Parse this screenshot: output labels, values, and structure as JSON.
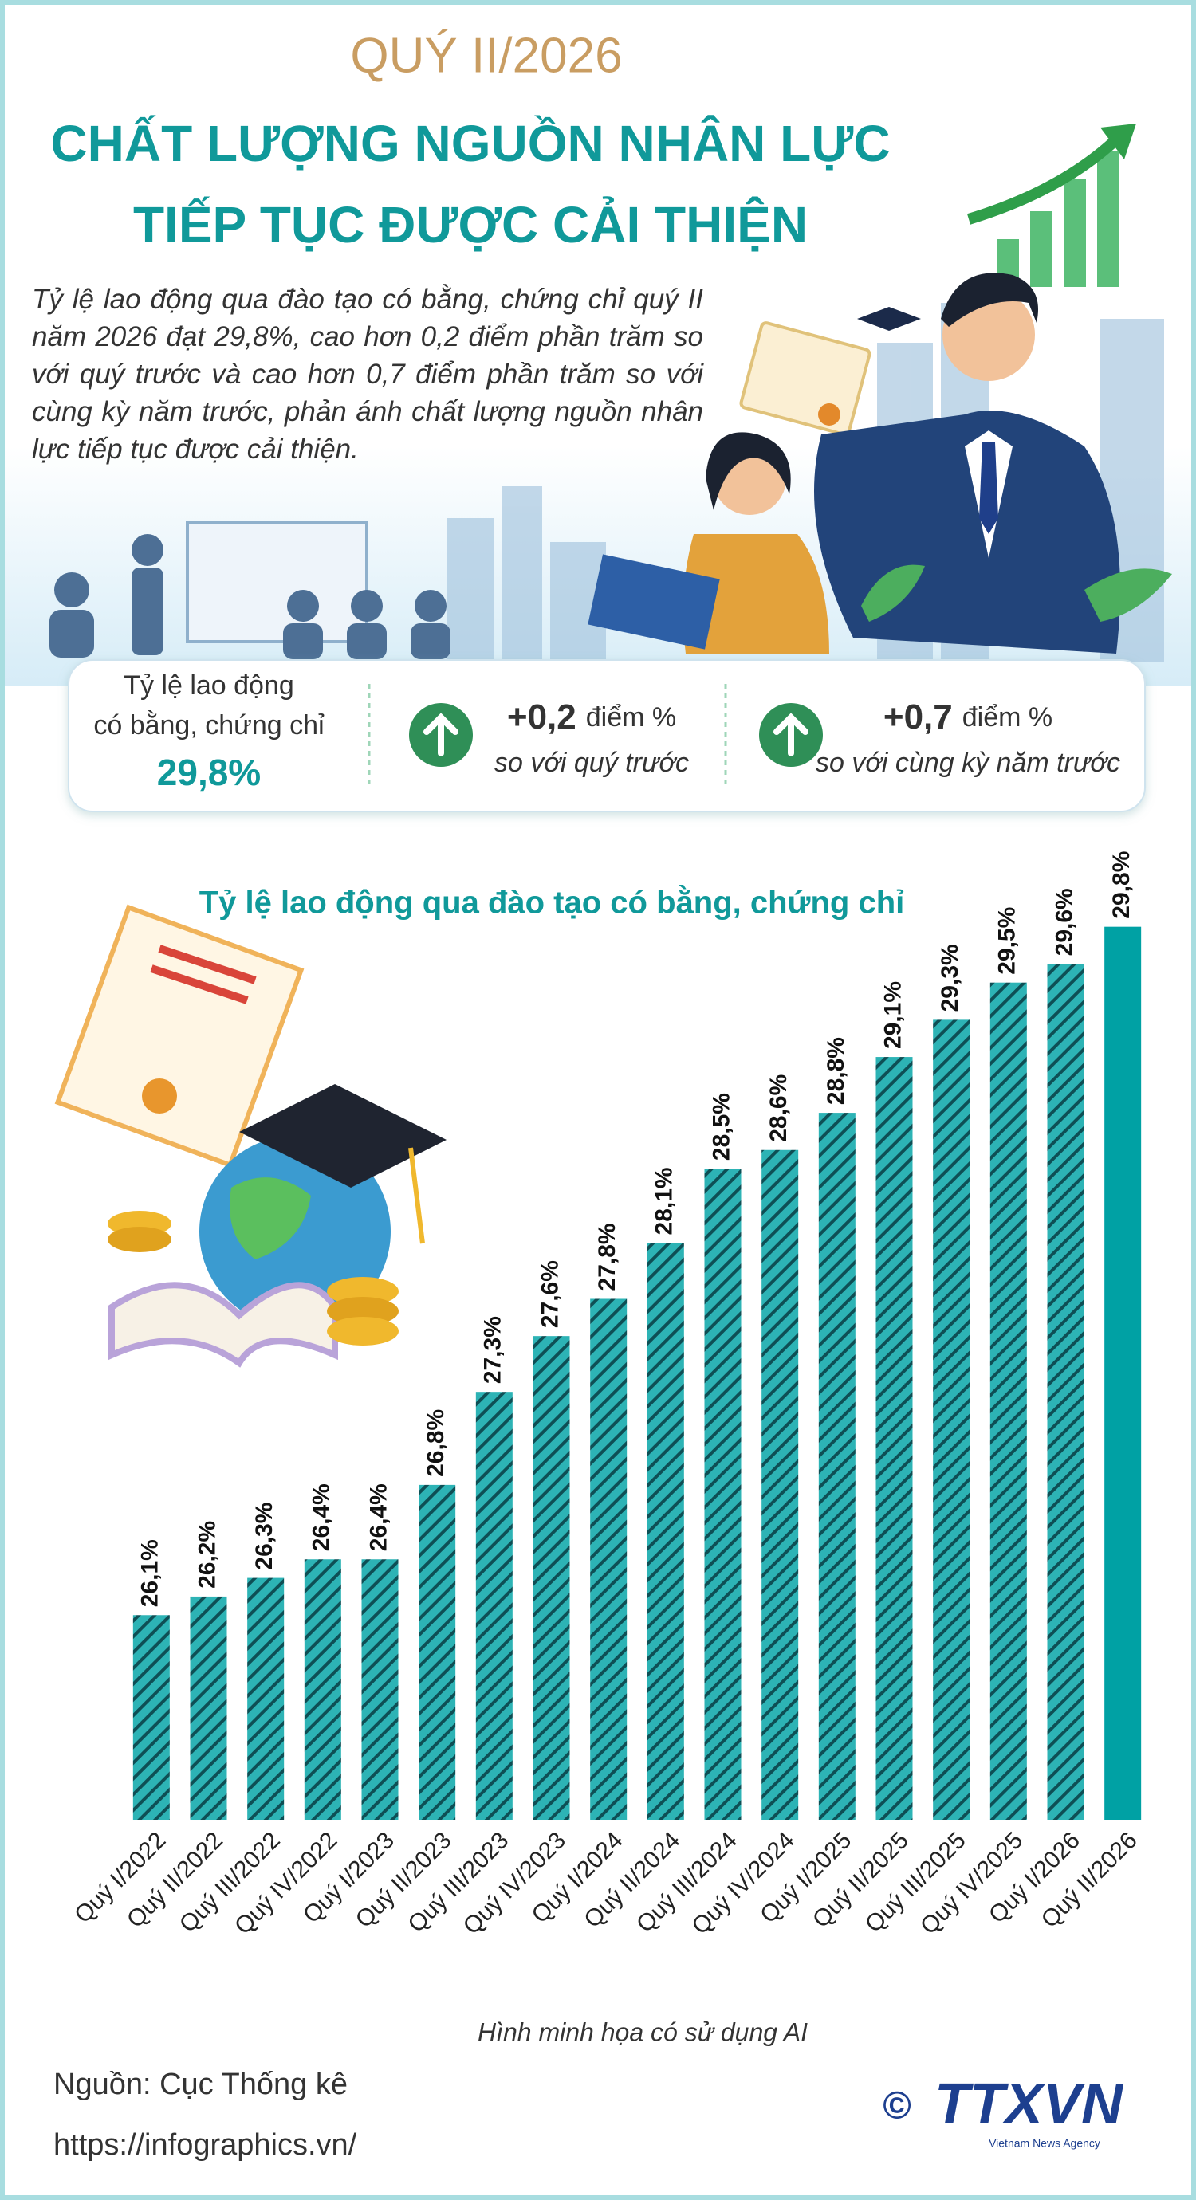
{
  "header": {
    "period": "QUÝ II/2026",
    "title_line1": "CHẤT LƯỢNG NGUỒN NHÂN LỰC",
    "title_line2": "TIẾP TỤC ĐƯỢC CẢI THIỆN",
    "intro": "Tỷ lệ lao động qua đào tạo có bằng, chứng chỉ quý II năm 2026 đạt 29,8%, cao hơn 0,2 điểm phần trăm so với quý trước và cao hơn 0,7 điểm phần trăm so với cùng kỳ năm trước, phản ánh chất lượng nguồn nhân lực tiếp tục được cải thiện."
  },
  "summary": {
    "label_line1": "Tỷ lệ lao động",
    "label_line2": "có bằng, chứng chỉ",
    "value": "29,8%",
    "change1": {
      "value": "+0,2",
      "unit": "điểm %",
      "note": "so với quý trước"
    },
    "change2": {
      "value": "+0,7",
      "unit": "điểm %",
      "note": "so với cùng kỳ năm trước"
    }
  },
  "chart_data": {
    "type": "bar",
    "title": "Tỷ lệ lao động qua đào tạo có bằng, chứng chỉ",
    "categories": [
      "Quý I/2022",
      "Quý II/2022",
      "Quý III/2022",
      "Quý IV/2022",
      "Quý I/2023",
      "Quý II/2023",
      "Quý III/2023",
      "Quý IV/2023",
      "Quý I/2024",
      "Quý II/2024",
      "Quý III/2024",
      "Quý IV/2024",
      "Quý I/2025",
      "Quý II/2025",
      "Quý III/2025",
      "Quý IV/2025",
      "Quý I/2026",
      "Quý II/2026"
    ],
    "values": [
      26.1,
      26.2,
      26.3,
      26.4,
      26.4,
      26.8,
      27.3,
      27.6,
      27.8,
      28.1,
      28.5,
      28.6,
      28.8,
      29.1,
      29.3,
      29.5,
      29.6,
      29.8
    ],
    "value_labels": [
      "26,1%",
      "26,2%",
      "26,3%",
      "26,4%",
      "26,4%",
      "26,8%",
      "27,3%",
      "27,6%",
      "27,8%",
      "28,1%",
      "28,5%",
      "28,6%",
      "28,8%",
      "29,1%",
      "29,3%",
      "29,5%",
      "29,6%",
      "29,8%"
    ],
    "ylim": [
      25,
      30
    ],
    "color": "#2db3b5",
    "hatch_color": "#0e4f55",
    "highlight_index": 17,
    "highlight_color": "#00a1a4"
  },
  "footer": {
    "note": "Hình minh họa có sử dụng AI",
    "source": "Nguồn: Cục Thống kê",
    "url": "https://infographics.vn/",
    "copyright": "©",
    "logo": "TTXVN",
    "logo_sub": "Vietnam News Agency"
  }
}
